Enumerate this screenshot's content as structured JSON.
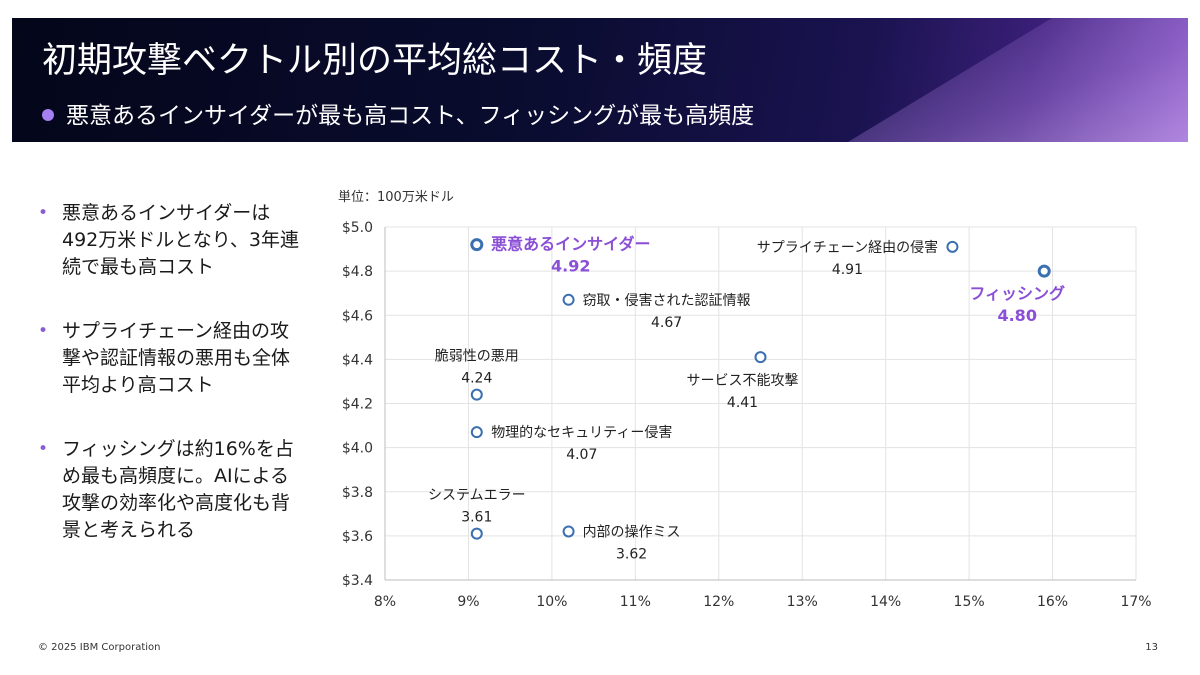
{
  "header": {
    "title": "初期攻撃ベクトル別の平均総コスト・頻度",
    "subtitle": "悪意あるインサイダーが最も高コスト、フィッシングが最も高頻度"
  },
  "bullets": [
    {
      "text": "悪意あるインサイダーは492万米ドルとなり、3年連続で最も高コスト"
    },
    {
      "text": "サプライチェーン経由の攻撃や認証情報の悪用も全体平均より高コスト"
    },
    {
      "text": "フィッシングは約16%を占め最も高頻度に。AIによる攻撃の効率化や高度化も背景と考えられる"
    }
  ],
  "unit_label": "単位：100万米ドル",
  "footer": {
    "copyright": "© 2025 IBM Corporation",
    "page": "13"
  },
  "colors": {
    "accent": "#8a4fd6",
    "marker": "#3a6fb0",
    "grid": "#e3e3e3"
  },
  "chart_data": {
    "type": "scatter",
    "xlim": [
      8,
      17
    ],
    "ylim": [
      3.4,
      5.0
    ],
    "x_ticks": [
      "8%",
      "9%",
      "10%",
      "11%",
      "12%",
      "13%",
      "14%",
      "15%",
      "16%",
      "17%"
    ],
    "y_ticks": [
      "$3.4",
      "$3.6",
      "$3.8",
      "$4.0",
      "$4.2",
      "$4.4",
      "$4.6",
      "$4.8",
      "$5.0"
    ],
    "grid": true,
    "points": [
      {
        "name": "悪意あるインサイダー",
        "x": 9.1,
        "y": 4.92,
        "value_label": "4.92",
        "highlight": true,
        "label_side": "right"
      },
      {
        "name": "サプライチェーン経由の侵害",
        "x": 14.8,
        "y": 4.91,
        "value_label": "4.91",
        "highlight": false,
        "label_side": "left"
      },
      {
        "name": "フィッシング",
        "x": 15.9,
        "y": 4.8,
        "value_label": "4.80",
        "highlight": true,
        "label_side": "below"
      },
      {
        "name": "窃取・侵害された認証情報",
        "x": 10.2,
        "y": 4.67,
        "value_label": "4.67",
        "highlight": false,
        "label_side": "right"
      },
      {
        "name": "サービス不能攻撃",
        "x": 12.5,
        "y": 4.41,
        "value_label": "4.41",
        "highlight": false,
        "label_side": "below"
      },
      {
        "name": "脆弱性の悪用",
        "x": 9.1,
        "y": 4.24,
        "value_label": "4.24",
        "highlight": false,
        "label_side": "above"
      },
      {
        "name": "物理的なセキュリティー侵害",
        "x": 9.1,
        "y": 4.07,
        "value_label": "4.07",
        "highlight": false,
        "label_side": "right"
      },
      {
        "name": "システムエラー",
        "x": 9.1,
        "y": 3.61,
        "value_label": "3.61",
        "highlight": false,
        "label_side": "above"
      },
      {
        "name": "内部の操作ミス",
        "x": 10.2,
        "y": 3.62,
        "value_label": "3.62",
        "highlight": false,
        "label_side": "right"
      }
    ]
  }
}
